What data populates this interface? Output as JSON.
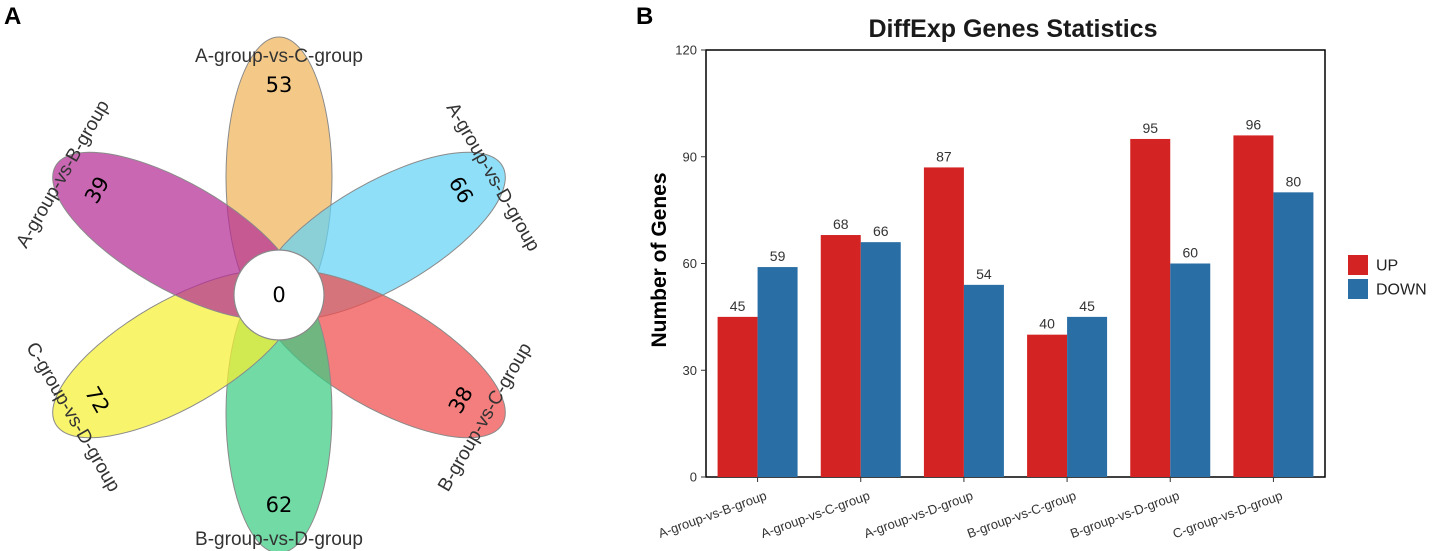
{
  "panels": {
    "a_letter": "A",
    "b_letter": "B"
  },
  "venn": {
    "center_value": "0",
    "petals": [
      {
        "label": "A-group-vs-C-group",
        "count": "53",
        "color": "#f0b45a"
      },
      {
        "label": "A-group-vs-D-group",
        "count": "66",
        "color": "#64d2f5"
      },
      {
        "label": "B-group-vs-C-group",
        "count": "38",
        "color": "#f04b4b"
      },
      {
        "label": "B-group-vs-D-group",
        "count": "62",
        "color": "#3ccc82"
      },
      {
        "label": "C-group-vs-D-group",
        "count": "72",
        "color": "#f5f032"
      },
      {
        "label": "A-group-vs-B-group",
        "count": "39",
        "color": "#b42d96"
      }
    ]
  },
  "chart_data": {
    "type": "bar",
    "title": "DiffExp Genes Statistics",
    "xlabel": "",
    "ylabel": "Number of Genes",
    "ylim": [
      0,
      120
    ],
    "yticks": [
      0,
      30,
      60,
      90,
      120
    ],
    "categories": [
      "A-group-vs-B-group",
      "A-group-vs-C-group",
      "A-group-vs-D-group",
      "B-group-vs-C-group",
      "B-group-vs-D-group",
      "C-group-vs-D-group"
    ],
    "series": [
      {
        "name": "UP",
        "color": "#d42323",
        "values": [
          45,
          68,
          87,
          40,
          95,
          96
        ]
      },
      {
        "name": "DOWN",
        "color": "#2a6ea6",
        "values": [
          59,
          66,
          54,
          45,
          60,
          80
        ]
      }
    ],
    "legend": "right"
  }
}
